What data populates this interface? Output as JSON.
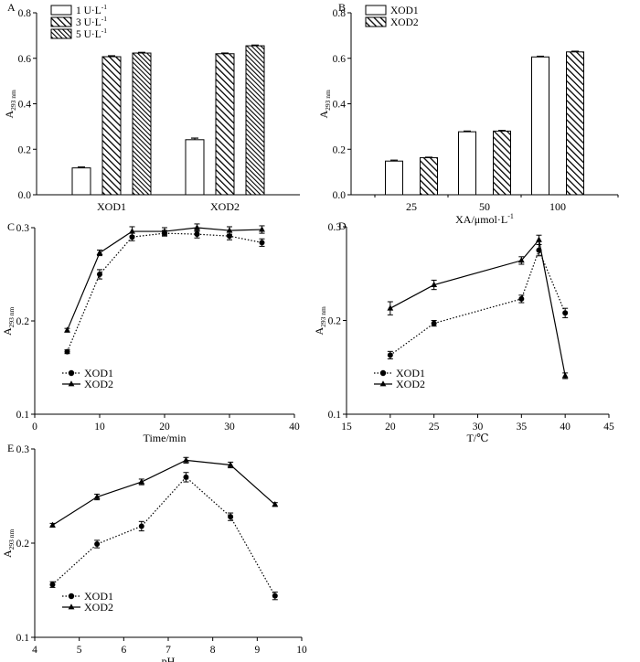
{
  "chart_data": [
    {
      "panel": "A",
      "type": "bar",
      "categories": [
        "XOD1",
        "XOD2"
      ],
      "series": [
        {
          "name": "1 U·L",
          "sup": "-1",
          "values": [
            0.118,
            0.242
          ],
          "errors": [
            0.004,
            0.007
          ],
          "pattern": "white"
        },
        {
          "name": "3 U·L",
          "sup": "-1",
          "values": [
            0.607,
            0.62
          ],
          "errors": [
            0.004,
            0.003
          ],
          "pattern": "hatch-wide"
        },
        {
          "name": "5 U·L",
          "sup": "-1",
          "values": [
            0.623,
            0.655
          ],
          "errors": [
            0.003,
            0.003
          ],
          "pattern": "hatch-dense"
        }
      ],
      "ylabel": "A",
      "ylabel_sub": "293 nm",
      "xlabel": "",
      "ylim": [
        0,
        0.8
      ],
      "yticks": [
        "0.0",
        "0.2",
        "0.4",
        "0.6",
        "0.8"
      ],
      "legend": "top-left"
    },
    {
      "panel": "B",
      "type": "bar",
      "categories": [
        "25",
        "50",
        "100"
      ],
      "series": [
        {
          "name": "XOD1",
          "sup": "",
          "values": [
            0.148,
            0.277,
            0.606
          ],
          "errors": [
            0.004,
            0.003,
            0.003
          ],
          "pattern": "white"
        },
        {
          "name": "XOD2",
          "sup": "",
          "values": [
            0.163,
            0.28,
            0.628
          ],
          "errors": [
            0.002,
            0.003,
            0.003
          ],
          "pattern": "hatch-wide"
        }
      ],
      "ylabel": "A",
      "ylabel_sub": "293 nm",
      "xlabel": "XA/μmol·L",
      "xlabel_sup": "-1",
      "ylim": [
        0,
        0.8
      ],
      "yticks": [
        "0.0",
        "0.2",
        "0.4",
        "0.6",
        "0.8"
      ],
      "legend": "top-left"
    },
    {
      "panel": "C",
      "type": "line",
      "x": [
        5,
        10,
        15,
        20,
        25,
        30,
        35
      ],
      "series": [
        {
          "name": "XOD1",
          "values": [
            0.167,
            0.25,
            0.29,
            0.294,
            0.293,
            0.291,
            0.284
          ],
          "errors": [
            0.002,
            0.005,
            0.004,
            0.003,
            0.004,
            0.004,
            0.004
          ],
          "marker": "circle",
          "style": "dotted"
        },
        {
          "name": "XOD2",
          "values": [
            0.19,
            0.273,
            0.296,
            0.296,
            0.3,
            0.297,
            0.298
          ],
          "errors": [
            0.002,
            0.003,
            0.005,
            0.004,
            0.004,
            0.004,
            0.004
          ],
          "marker": "triangle",
          "style": "solid"
        }
      ],
      "ylabel": "A",
      "ylabel_sub": "293 nm",
      "xlabel": "Time/min",
      "xlim": [
        0,
        40
      ],
      "ylim": [
        0.1,
        0.3
      ],
      "xticks": [
        "0",
        "10",
        "20",
        "30",
        "40"
      ],
      "yticks": [
        "0.1",
        "0.2",
        "0.3"
      ],
      "legend": "bottom-left"
    },
    {
      "panel": "D",
      "type": "line",
      "x": [
        20,
        25,
        35,
        37,
        40
      ],
      "series": [
        {
          "name": "XOD1",
          "values": [
            0.163,
            0.197,
            0.223,
            0.275,
            0.208
          ],
          "errors": [
            0.004,
            0.003,
            0.004,
            0.006,
            0.005
          ],
          "marker": "circle",
          "style": "dotted"
        },
        {
          "name": "XOD2",
          "values": [
            0.213,
            0.238,
            0.264,
            0.286,
            0.141
          ],
          "errors": [
            0.007,
            0.005,
            0.004,
            0.005,
            0.003
          ],
          "marker": "triangle",
          "style": "solid"
        }
      ],
      "ylabel": "A",
      "ylabel_sub": "293 nm",
      "xlabel": "T/℃",
      "xlim": [
        15,
        45
      ],
      "ylim": [
        0.1,
        0.3
      ],
      "xticks": [
        "15",
        "20",
        "25",
        "30",
        "35",
        "40",
        "45"
      ],
      "yticks": [
        "0.1",
        "0.2",
        "0.3"
      ],
      "legend": "bottom-left"
    },
    {
      "panel": "E",
      "type": "line",
      "x": [
        4.4,
        5.4,
        6.4,
        7.4,
        8.4,
        9.4
      ],
      "series": [
        {
          "name": "XOD1",
          "values": [
            0.156,
            0.199,
            0.218,
            0.27,
            0.228,
            0.144
          ],
          "errors": [
            0.003,
            0.004,
            0.005,
            0.005,
            0.004,
            0.004
          ],
          "marker": "circle",
          "style": "dotted"
        },
        {
          "name": "XOD2",
          "values": [
            0.219,
            0.249,
            0.265,
            0.288,
            0.283,
            0.241
          ],
          "errors": [
            0.002,
            0.003,
            0.003,
            0.003,
            0.003,
            0.002
          ],
          "marker": "triangle",
          "style": "solid"
        }
      ],
      "ylabel": "A",
      "ylabel_sub": "293 nm",
      "xlabel": "pH",
      "xlim": [
        4,
        10
      ],
      "ylim": [
        0.1,
        0.3
      ],
      "xticks": [
        "4",
        "5",
        "6",
        "7",
        "8",
        "9",
        "10"
      ],
      "yticks": [
        "0.1",
        "0.2",
        "0.3"
      ],
      "legend": "bottom-left"
    }
  ]
}
